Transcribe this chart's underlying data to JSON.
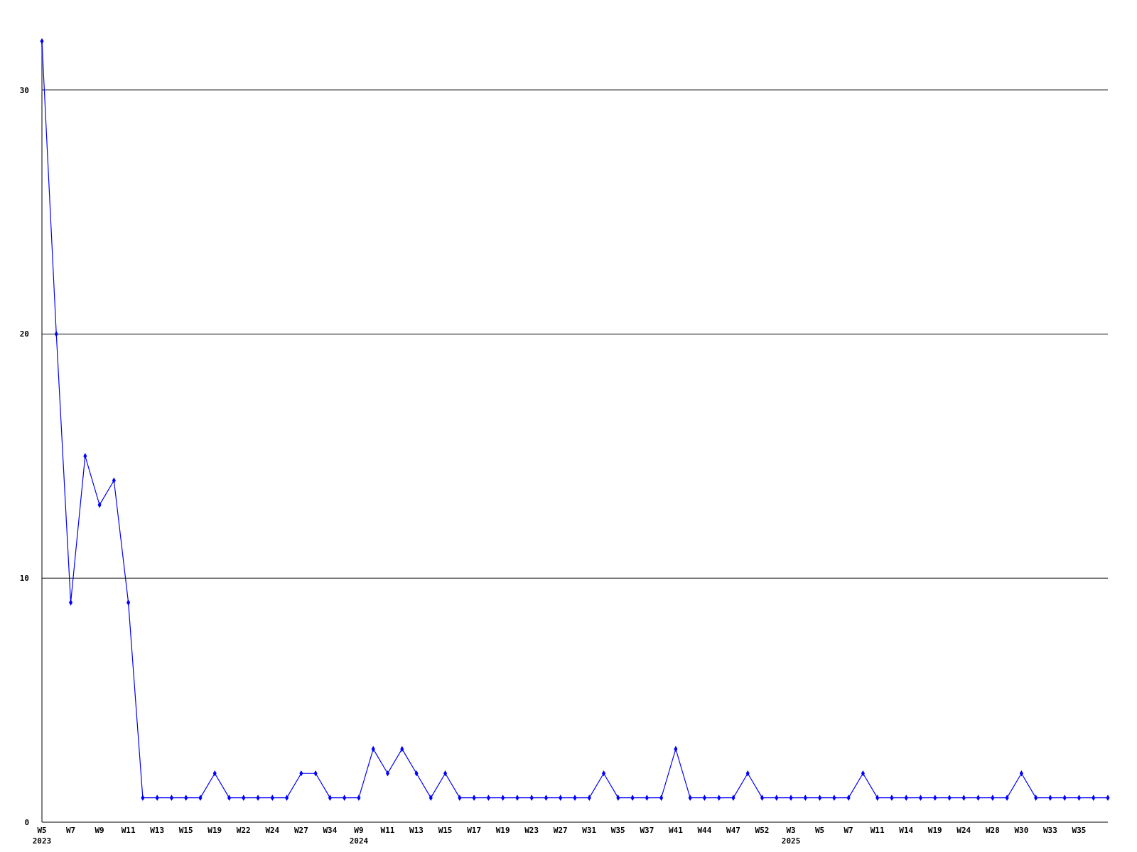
{
  "chart_data": {
    "type": "line",
    "categories": [
      "W5\n2023",
      null,
      "W7",
      null,
      "W9",
      null,
      "W11",
      null,
      "W13",
      null,
      "W15",
      null,
      "W19",
      null,
      "W22",
      null,
      "W24",
      null,
      "W27",
      null,
      "W34",
      null,
      "W9\n2024",
      null,
      "W11",
      null,
      "W13",
      null,
      "W15",
      null,
      "W17",
      null,
      "W19",
      null,
      "W23",
      null,
      "W27",
      null,
      "W31",
      null,
      "W35",
      null,
      "W37",
      null,
      "W41",
      null,
      "W44",
      null,
      "W47",
      null,
      "W52",
      null,
      "W3\n2025",
      null,
      "W5",
      null,
      "W7",
      null,
      "W11",
      null,
      "W14",
      null,
      "W19",
      null,
      "W24",
      null,
      "W28",
      null,
      "W30",
      null,
      "W33",
      null,
      "W35",
      null,
      null
    ],
    "series": [
      {
        "color": "#0000ff",
        "values": [
          32,
          20,
          9,
          15,
          13,
          14,
          9,
          1,
          1,
          1,
          1,
          1,
          2,
          1,
          1,
          1,
          1,
          1,
          2,
          2,
          1,
          1,
          1,
          3,
          2,
          3,
          2,
          1,
          2,
          1,
          1,
          1,
          1,
          1,
          1,
          1,
          1,
          1,
          1,
          2,
          1,
          1,
          1,
          1,
          3,
          1,
          1,
          1,
          1,
          2,
          1,
          1,
          1,
          1,
          1,
          1,
          1,
          2,
          1,
          1,
          1,
          1,
          1,
          1,
          1,
          1,
          1,
          1,
          2,
          1,
          1,
          1,
          1,
          1,
          1
        ]
      }
    ],
    "ylim": [
      0,
      32
    ],
    "yticks": [
      0,
      10,
      20,
      30
    ],
    "grid": "y",
    "marker": "diamond",
    "line_style": "solid"
  }
}
